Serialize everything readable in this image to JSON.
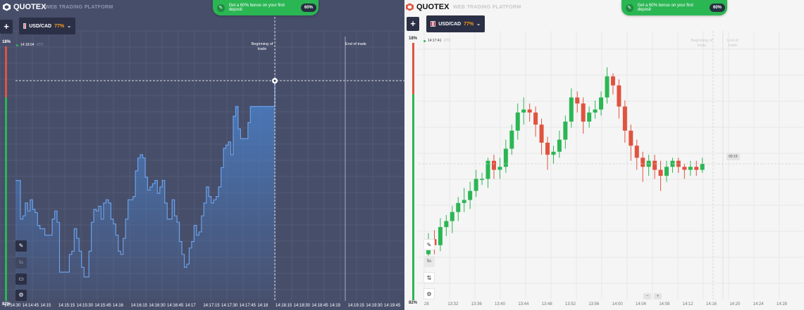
{
  "brand": {
    "name": "QUOTEX",
    "subtitle": "WEB TRADING PLATFORM"
  },
  "promo": {
    "text": "Get a 60% bonus on your first deposit",
    "percent": "60%"
  },
  "dark_panel": {
    "asset": "USD/CAD",
    "payout": "77%",
    "clock": "14:18:04",
    "tz": "UTC",
    "top_percent": "18%",
    "bottom_percent": "82%",
    "begin_label": "Beginning of trade",
    "end_label": "End of trade",
    "tool_timeframe": "5s",
    "x_ticks": [
      "14:14:30",
      "14:14:45",
      "14:15",
      "14:15:15",
      "14:15:30",
      "14:15:45",
      "14:16",
      "14:16:15",
      "14:16:30",
      "14:16:45",
      "14:17",
      "14:17:15",
      "14:17:30",
      "14:17:45",
      "14:18",
      "14:18:15",
      "14:18:30",
      "14:18:45",
      "14:19",
      "14:19:15",
      "14:19:30",
      "14:19:45"
    ]
  },
  "light_panel": {
    "asset": "USD/CAD",
    "payout": "77%",
    "clock": "14:17:41",
    "tz": "UTC",
    "top_percent": "18%",
    "bottom_percent": "82%",
    "begin_label": "Beginning of trade",
    "end_label": "End of trade",
    "timer": "00:19",
    "tool_timeframe": "5s",
    "zoom_out": "−",
    "zoom_in": "+",
    "x_ticks": [
      "28",
      "13:32",
      "13:36",
      "13:40",
      "13:44",
      "13:48",
      "13:52",
      "13:56",
      "14:00",
      "14:04",
      "14:08",
      "14:12",
      "14:16",
      "14:20",
      "14:24",
      "14:28"
    ]
  },
  "icons": {
    "logo": "quotex-logo-icon",
    "gift": "gift-icon",
    "add": "plus-icon",
    "chevron": "chevron-down-icon",
    "pencil": "pencil-icon",
    "chart_type": "chart-type-icon",
    "indicators": "indicators-icon"
  },
  "chart_data": [
    {
      "type": "area",
      "title": "",
      "series": [
        {
          "name": "",
          "values": [
            0.74,
            0.74,
            0.5,
            0.52,
            0.6,
            0.55,
            0.62,
            0.56,
            0.54,
            0.46,
            0.44,
            0.44,
            0.4,
            0.4,
            0.4,
            0.5,
            0.55,
            0.48,
            0.17,
            0.17,
            0.17,
            0.17,
            0.28,
            0.3,
            0.44,
            0.38,
            0.3,
            0.2,
            0.14,
            0.14,
            0.3,
            0.48,
            0.56,
            0.55,
            0.58,
            0.5,
            0.6,
            0.62,
            0.6,
            0.5,
            0.47,
            0.4,
            0.3,
            0.28,
            0.38,
            0.5,
            0.62,
            0.62,
            0.64,
            0.8,
            0.88,
            0.9,
            0.88,
            0.76,
            0.68,
            0.7,
            0.72,
            0.74,
            0.66,
            0.7,
            0.74,
            0.6,
            0.5,
            0.5,
            0.62,
            0.52,
            0.48,
            0.36,
            0.28,
            0.2,
            0.22,
            0.32,
            0.36,
            0.46,
            0.4,
            0.42,
            0.52,
            0.6,
            0.7,
            0.64,
            0.6,
            0.62,
            0.64,
            0.7,
            0.82,
            0.94,
            0.96,
            0.98,
            0.9,
            1.14,
            1.2,
            1.06,
            1.0,
            1.0,
            1.0,
            1.1,
            1.2,
            1.2,
            1.2,
            1.2,
            1.2,
            1.2,
            1.2,
            1.2,
            1.2,
            1.2,
            1.36
          ]
        }
      ],
      "ylim": [
        0,
        1.6
      ],
      "grid": true
    },
    {
      "type": "candlestick",
      "title": "",
      "candles": [
        [
          0.3,
          0.4,
          0.22,
          0.44
        ],
        [
          0.4,
          0.36,
          0.3,
          0.46
        ],
        [
          0.36,
          0.48,
          0.32,
          0.54
        ],
        [
          0.48,
          0.52,
          0.42,
          0.56
        ],
        [
          0.52,
          0.58,
          0.44,
          0.62
        ],
        [
          0.58,
          0.64,
          0.52,
          0.68
        ],
        [
          0.64,
          0.66,
          0.58,
          0.74
        ],
        [
          0.66,
          0.72,
          0.6,
          0.78
        ],
        [
          0.72,
          0.8,
          0.68,
          0.86
        ],
        [
          0.8,
          0.8,
          0.76,
          0.84
        ],
        [
          0.8,
          0.92,
          0.74,
          0.94
        ],
        [
          0.92,
          0.86,
          0.8,
          0.96
        ],
        [
          0.86,
          0.88,
          0.8,
          0.94
        ],
        [
          0.88,
          1.0,
          0.84,
          1.06
        ],
        [
          1.0,
          1.12,
          0.96,
          1.16
        ],
        [
          1.12,
          1.24,
          1.06,
          1.3
        ],
        [
          1.24,
          1.26,
          1.16,
          1.34
        ],
        [
          1.26,
          1.24,
          1.18,
          1.3
        ],
        [
          1.24,
          1.16,
          1.08,
          1.28
        ],
        [
          1.16,
          1.04,
          0.96,
          1.2
        ],
        [
          1.04,
          0.96,
          0.86,
          1.08
        ],
        [
          0.96,
          0.98,
          0.9,
          1.02
        ],
        [
          0.98,
          1.06,
          0.94,
          1.12
        ],
        [
          1.06,
          1.18,
          1.0,
          1.22
        ],
        [
          1.18,
          1.34,
          1.14,
          1.4
        ],
        [
          1.34,
          1.3,
          1.24,
          1.38
        ],
        [
          1.3,
          1.18,
          1.1,
          1.34
        ],
        [
          1.18,
          1.24,
          1.14,
          1.28
        ],
        [
          1.24,
          1.26,
          1.2,
          1.32
        ],
        [
          1.26,
          1.34,
          1.22,
          1.38
        ],
        [
          1.34,
          1.48,
          1.3,
          1.54
        ],
        [
          1.48,
          1.42,
          1.36,
          1.5
        ],
        [
          1.42,
          1.28,
          1.2,
          1.46
        ],
        [
          1.28,
          1.12,
          1.04,
          1.32
        ],
        [
          1.12,
          1.02,
          0.92,
          1.16
        ],
        [
          1.02,
          0.94,
          0.86,
          1.06
        ],
        [
          0.94,
          0.88,
          0.78,
          0.98
        ],
        [
          0.88,
          0.92,
          0.82,
          0.96
        ],
        [
          0.92,
          0.86,
          0.8,
          0.96
        ],
        [
          0.86,
          0.82,
          0.72,
          0.92
        ],
        [
          0.82,
          0.88,
          0.78,
          0.92
        ],
        [
          0.88,
          0.92,
          0.84,
          0.94
        ],
        [
          0.92,
          0.88,
          0.84,
          0.94
        ],
        [
          0.88,
          0.86,
          0.8,
          0.9
        ],
        [
          0.86,
          0.88,
          0.82,
          0.92
        ],
        [
          0.88,
          0.86,
          0.82,
          0.92
        ],
        [
          0.86,
          0.9,
          0.84,
          0.94
        ]
      ],
      "ylim": [
        0,
        1.8
      ],
      "grid": true
    }
  ]
}
